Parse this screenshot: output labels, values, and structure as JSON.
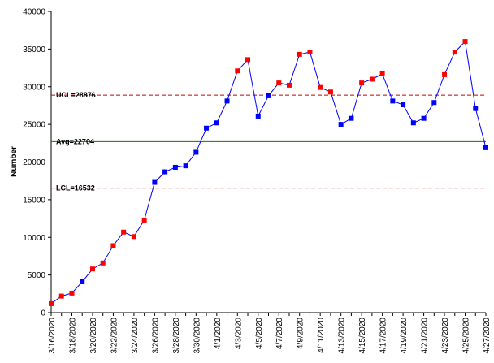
{
  "chart_data": {
    "type": "line",
    "title": "",
    "xlabel": "",
    "ylabel": "Number",
    "ylim": [
      0,
      40000
    ],
    "yticks": [
      0,
      5000,
      10000,
      15000,
      20000,
      25000,
      30000,
      35000,
      40000
    ],
    "x_tick_labels": [
      "3/16/2020",
      "3/18/2020",
      "3/20/2020",
      "3/22/2020",
      "3/24/2020",
      "3/26/2020",
      "3/28/2020",
      "3/30/2020",
      "4/1/2020",
      "4/3/2020",
      "4/5/2020",
      "4/7/2020",
      "4/9/2020",
      "4/11/2020",
      "4/13/2020",
      "4/15/2020",
      "4/17/2020",
      "4/19/2020",
      "4/21/2020",
      "4/23/2020",
      "4/25/2020",
      "4/27/2020"
    ],
    "x": [
      "3/16/2020",
      "3/17/2020",
      "3/18/2020",
      "3/19/2020",
      "3/20/2020",
      "3/21/2020",
      "3/22/2020",
      "3/23/2020",
      "3/24/2020",
      "3/25/2020",
      "3/26/2020",
      "3/27/2020",
      "3/28/2020",
      "3/29/2020",
      "3/30/2020",
      "3/31/2020",
      "4/1/2020",
      "4/2/2020",
      "4/3/2020",
      "4/4/2020",
      "4/5/2020",
      "4/6/2020",
      "4/7/2020",
      "4/8/2020",
      "4/9/2020",
      "4/10/2020",
      "4/11/2020",
      "4/12/2020",
      "4/13/2020",
      "4/14/2020",
      "4/15/2020",
      "4/16/2020",
      "4/17/2020",
      "4/18/2020",
      "4/19/2020",
      "4/20/2020",
      "4/21/2020",
      "4/22/2020",
      "4/23/2020",
      "4/24/2020",
      "4/25/2020",
      "4/26/2020",
      "4/27/2020"
    ],
    "series": [
      {
        "values": [
          1200,
          2200,
          2600,
          4100,
          5800,
          6600,
          8900,
          10700,
          10100,
          12300,
          17300,
          18700,
          19300,
          19500,
          21300,
          24500,
          25200,
          28100,
          32100,
          33600,
          26100,
          28800,
          30500,
          30200,
          34300,
          34600,
          29900,
          29300,
          25000,
          25800,
          30500,
          31000,
          31700,
          28100,
          27600,
          25200,
          25800,
          27900,
          31600,
          34600,
          36000,
          27100,
          21900
        ],
        "line_color": "#0000ff",
        "marker_colors": [
          "#ff0000",
          "#ff0000",
          "#ff0000",
          "#0000ff",
          "#ff0000",
          "#ff0000",
          "#ff0000",
          "#ff0000",
          "#ff0000",
          "#ff0000",
          "#0000ff",
          "#0000ff",
          "#0000ff",
          "#0000ff",
          "#0000ff",
          "#0000ff",
          "#0000ff",
          "#0000ff",
          "#ff0000",
          "#ff0000",
          "#0000ff",
          "#0000ff",
          "#ff0000",
          "#ff0000",
          "#ff0000",
          "#ff0000",
          "#ff0000",
          "#ff0000",
          "#0000ff",
          "#0000ff",
          "#ff0000",
          "#ff0000",
          "#ff0000",
          "#0000ff",
          "#0000ff",
          "#0000ff",
          "#0000ff",
          "#0000ff",
          "#ff0000",
          "#ff0000",
          "#ff0000",
          "#0000ff",
          "#0000ff"
        ]
      }
    ],
    "reference_lines": [
      {
        "label": "UCL=28876",
        "value": 28876,
        "color": "#c00000",
        "style": "dashed"
      },
      {
        "label": "Avg=22704",
        "value": 22704,
        "color": "#008000",
        "style": "solid"
      },
      {
        "label": "LCL=16532",
        "value": 16532,
        "color": "#c00000",
        "style": "dashed"
      }
    ],
    "grid": false,
    "legend": "none"
  }
}
